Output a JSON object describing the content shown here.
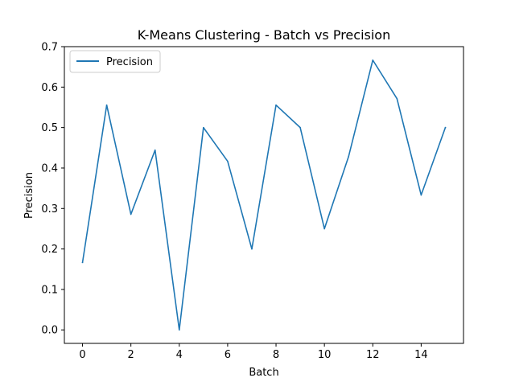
{
  "chart_data": {
    "type": "line",
    "title": "K-Means Clustering - Batch vs Precision",
    "xlabel": "Batch",
    "ylabel": "Precision",
    "x": [
      0,
      1,
      2,
      3,
      4,
      5,
      6,
      7,
      8,
      9,
      10,
      11,
      12,
      13,
      14,
      15
    ],
    "series": [
      {
        "name": "Precision",
        "color": "#1f77b4",
        "values": [
          0.1667,
          0.5556,
          0.2857,
          0.4444,
          0.0,
          0.5,
          0.4167,
          0.2,
          0.5556,
          0.5,
          0.25,
          0.4286,
          0.6667,
          0.5714,
          0.3333,
          0.5
        ]
      }
    ],
    "xlim": [
      -0.75,
      15.75
    ],
    "ylim": [
      -0.0333,
      0.7
    ],
    "xticks": [
      0,
      2,
      4,
      6,
      8,
      10,
      12,
      14
    ],
    "xtick_labels": [
      "0",
      "2",
      "4",
      "6",
      "8",
      "10",
      "12",
      "14"
    ],
    "yticks": [
      0.0,
      0.1,
      0.2,
      0.3,
      0.4,
      0.5,
      0.6,
      0.7
    ],
    "ytick_labels": [
      "0.0",
      "0.1",
      "0.2",
      "0.3",
      "0.4",
      "0.5",
      "0.6",
      "0.7"
    ],
    "grid": false,
    "legend_position": "top-left"
  }
}
